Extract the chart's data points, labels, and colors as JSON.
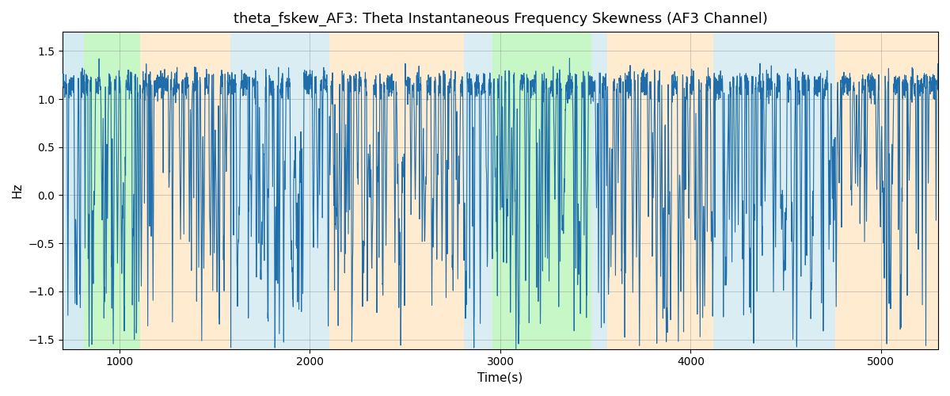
{
  "title": "theta_fskew_AF3: Theta Instantaneous Frequency Skewness (AF3 Channel)",
  "xlabel": "Time(s)",
  "ylabel": "Hz",
  "xlim": [
    700,
    5300
  ],
  "ylim": [
    -1.6,
    1.7
  ],
  "yticks": [
    -1.5,
    -1.0,
    -0.5,
    0.0,
    0.5,
    1.0,
    1.5
  ],
  "xticks": [
    1000,
    2000,
    3000,
    4000,
    5000
  ],
  "line_color": "#1f6eab",
  "line_width": 0.8,
  "bg_regions": [
    {
      "xmin": 700,
      "xmax": 812,
      "color": "#add8e6",
      "alpha": 0.5
    },
    {
      "xmin": 812,
      "xmax": 1110,
      "color": "#90ee90",
      "alpha": 0.5
    },
    {
      "xmin": 1110,
      "xmax": 1580,
      "color": "#ffd9a0",
      "alpha": 0.5
    },
    {
      "xmin": 1580,
      "xmax": 1760,
      "color": "#add8e6",
      "alpha": 0.45
    },
    {
      "xmin": 1760,
      "xmax": 2100,
      "color": "#add8e6",
      "alpha": 0.45
    },
    {
      "xmin": 2100,
      "xmax": 2810,
      "color": "#ffd9a0",
      "alpha": 0.5
    },
    {
      "xmin": 2810,
      "xmax": 2870,
      "color": "#add8e6",
      "alpha": 0.45
    },
    {
      "xmin": 2870,
      "xmax": 2960,
      "color": "#add8e6",
      "alpha": 0.45
    },
    {
      "xmin": 2960,
      "xmax": 3480,
      "color": "#90ee90",
      "alpha": 0.5
    },
    {
      "xmin": 3480,
      "xmax": 3560,
      "color": "#add8e6",
      "alpha": 0.45
    },
    {
      "xmin": 3560,
      "xmax": 4120,
      "color": "#ffd9a0",
      "alpha": 0.5
    },
    {
      "xmin": 4120,
      "xmax": 4760,
      "color": "#add8e6",
      "alpha": 0.45
    },
    {
      "xmin": 4760,
      "xmax": 4940,
      "color": "#ffd9a0",
      "alpha": 0.5
    },
    {
      "xmin": 4940,
      "xmax": 5300,
      "color": "#ffd9a0",
      "alpha": 0.5
    }
  ],
  "seed": 42,
  "n_points": 5000,
  "figsize": [
    12.0,
    5.0
  ],
  "dpi": 100
}
